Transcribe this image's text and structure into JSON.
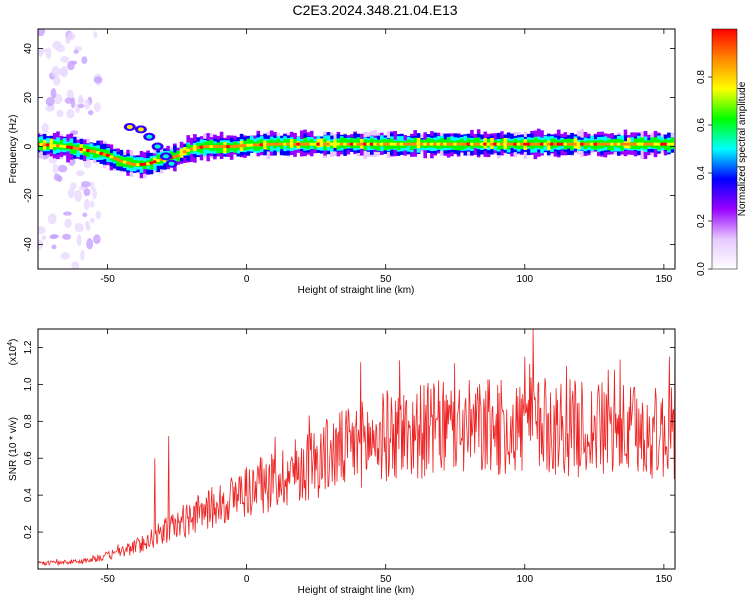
{
  "title": "C2E3.2024.348.21.04.E13",
  "chart_data": [
    {
      "type": "heatmap",
      "xlabel": "Height of straight line (km)",
      "ylabel": "Frequency (Hz)",
      "xlim": [
        -75,
        154
      ],
      "ylim": [
        -50,
        48
      ],
      "xticks": [
        -50,
        0,
        50,
        100,
        150
      ],
      "yticks": [
        -40,
        -20,
        0,
        20,
        40
      ],
      "colorbar": {
        "label": "Normalized spectral amplitude",
        "range": [
          0,
          1
        ],
        "ticks": [
          "0.0",
          "0.2",
          "0.4",
          "0.6",
          "0.8"
        ],
        "colors": [
          "#ffffff",
          "#e6c8ff",
          "#9900ff",
          "#0000ff",
          "#00ffff",
          "#00ff00",
          "#ffff00",
          "#ff8800",
          "#ff0000"
        ]
      },
      "ridge": [
        [
          -75,
          1
        ],
        [
          -70,
          0.5
        ],
        [
          -65,
          0
        ],
        [
          -60,
          -1
        ],
        [
          -55,
          -2
        ],
        [
          -50,
          -3.5
        ],
        [
          -45,
          -6
        ],
        [
          -40,
          -7.5
        ],
        [
          -35,
          -7
        ],
        [
          -30,
          -5
        ],
        [
          -25,
          -4
        ],
        [
          -22,
          -2
        ],
        [
          -20,
          -1
        ],
        [
          -15,
          0
        ],
        [
          -10,
          0
        ],
        [
          -5,
          0
        ],
        [
          0,
          0.5
        ],
        [
          10,
          1
        ],
        [
          20,
          1
        ],
        [
          30,
          1
        ],
        [
          40,
          1
        ],
        [
          50,
          1
        ],
        [
          60,
          1
        ],
        [
          70,
          1
        ],
        [
          80,
          1
        ],
        [
          90,
          1
        ],
        [
          100,
          1
        ],
        [
          110,
          1
        ],
        [
          120,
          1
        ],
        [
          130,
          1
        ],
        [
          140,
          1
        ],
        [
          150,
          1
        ],
        [
          154,
          1
        ]
      ],
      "upper_branch": [
        [
          -42,
          8
        ],
        [
          -38,
          7
        ],
        [
          -35,
          4
        ],
        [
          -32,
          0
        ],
        [
          -29,
          -4
        ],
        [
          -27,
          -7
        ]
      ]
    },
    {
      "type": "line",
      "xlabel": "Height of straight line (km)",
      "ylabel": "SNR (10 * v/v)",
      "y_multiplier": "(x10",
      "y_multiplier_exp": "4",
      "xlim": [
        -75,
        154
      ],
      "ylim": [
        0,
        1.3
      ],
      "xticks": [
        -50,
        0,
        50,
        100,
        150
      ],
      "yticks": [
        "0.2",
        "0.4",
        "0.6",
        "0.8",
        "1.0",
        "1.2"
      ],
      "color": "#ee2222",
      "trend": [
        [
          -75,
          0.03
        ],
        [
          -60,
          0.04
        ],
        [
          -50,
          0.07
        ],
        [
          -40,
          0.12
        ],
        [
          -30,
          0.2
        ],
        [
          -20,
          0.28
        ],
        [
          -10,
          0.35
        ],
        [
          0,
          0.42
        ],
        [
          10,
          0.48
        ],
        [
          20,
          0.55
        ],
        [
          30,
          0.62
        ],
        [
          40,
          0.67
        ],
        [
          50,
          0.72
        ],
        [
          60,
          0.74
        ],
        [
          70,
          0.76
        ],
        [
          80,
          0.76
        ],
        [
          90,
          0.76
        ],
        [
          100,
          0.77
        ],
        [
          110,
          0.77
        ],
        [
          120,
          0.76
        ],
        [
          130,
          0.75
        ],
        [
          140,
          0.74
        ],
        [
          150,
          0.73
        ],
        [
          154,
          0.73
        ]
      ],
      "peaks": [
        [
          -28,
          0.72
        ],
        [
          -33,
          0.6
        ],
        [
          41,
          1.12
        ],
        [
          55,
          1.13
        ],
        [
          100,
          1.15
        ],
        [
          103,
          1.3
        ],
        [
          115,
          1.1
        ],
        [
          130,
          1.08
        ],
        [
          152,
          1.15
        ],
        [
          154,
          1.27
        ]
      ]
    }
  ]
}
